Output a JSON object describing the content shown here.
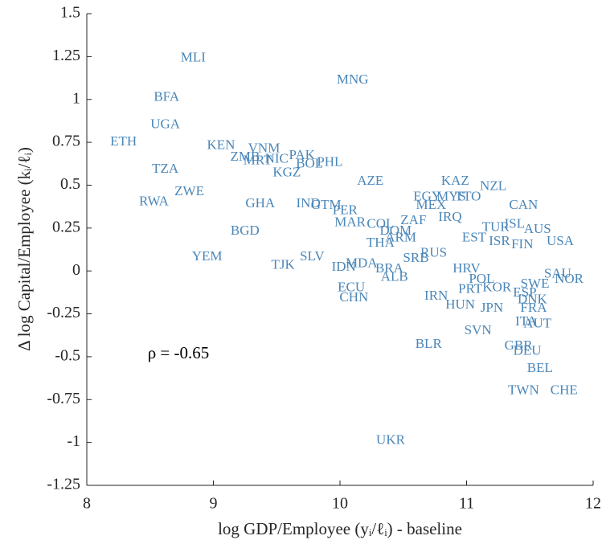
{
  "chart_data": {
    "type": "scatter",
    "xlabel": "log GDP/Employee (yᵢ/ℓᵢ) - baseline",
    "ylabel": "Δ log Capital/Employee (kᵢ/ℓᵢ)",
    "annotation": "ρ = -0.65",
    "color": "#4a86b8",
    "xlim": [
      8,
      12
    ],
    "xticks": [
      8,
      9,
      10,
      11,
      12
    ],
    "ylim": [
      -1.25,
      1.5
    ],
    "yticks": [
      -1.25,
      -1,
      -0.75,
      -0.5,
      -0.25,
      0,
      0.25,
      0.5,
      0.75,
      1,
      1.25,
      1.5
    ],
    "labels": [
      "MLI",
      "MNG",
      "BFA",
      "UGA",
      "ETH",
      "KEN",
      "VNM",
      "ZMB",
      "PAK",
      "MRT",
      "NIC",
      "BOL",
      "PHL",
      "KGZ",
      "TZA",
      "ZWE",
      "RWA",
      "AZE",
      "KAZ",
      "NZL",
      "EGY",
      "MYS",
      "TTO",
      "MEX",
      "GHA",
      "IND",
      "GTM",
      "PER",
      "CAN",
      "MAR",
      "COL",
      "ZAF",
      "IRQ",
      "TUR",
      "ISL",
      "AUS",
      "BGD",
      "DOM",
      "ARM",
      "EST",
      "ISR",
      "FIN",
      "USA",
      "THA",
      "RUS",
      "SRB",
      "YEM",
      "SLV",
      "TJK",
      "IDN",
      "MDA",
      "BRA",
      "ALB",
      "HRV",
      "POL",
      "SAU",
      "NOR",
      "SWE",
      "ECU",
      "CHN",
      "PRT",
      "KOR",
      "ESP",
      "IRN",
      "DNK",
      "HUN",
      "JPN",
      "FRA",
      "ITA",
      "AUT",
      "SVN",
      "BLR",
      "GBR",
      "DEU",
      "BEL",
      "TWN",
      "CHE",
      "UKR"
    ],
    "x": [
      8.84,
      10.1,
      8.63,
      8.62,
      8.29,
      9.06,
      9.4,
      9.25,
      9.7,
      9.35,
      9.5,
      9.76,
      9.92,
      9.58,
      8.62,
      8.81,
      8.53,
      10.24,
      10.91,
      11.21,
      10.69,
      10.88,
      11.01,
      10.72,
      9.37,
      9.75,
      9.89,
      10.04,
      11.45,
      10.08,
      10.32,
      10.58,
      10.87,
      11.23,
      11.38,
      11.56,
      9.25,
      10.44,
      10.48,
      11.06,
      11.26,
      11.44,
      11.74,
      10.32,
      10.74,
      10.6,
      8.95,
      9.78,
      9.55,
      10.03,
      10.17,
      10.39,
      10.43,
      11.0,
      11.12,
      11.72,
      11.81,
      11.54,
      10.09,
      10.11,
      11.03,
      11.24,
      11.46,
      10.76,
      11.52,
      10.95,
      11.2,
      11.53,
      11.47,
      11.56,
      11.09,
      10.7,
      11.41,
      11.48,
      11.58,
      11.45,
      11.77,
      10.4
    ],
    "values": [
      1.24,
      1.11,
      1.01,
      0.85,
      0.75,
      0.73,
      0.71,
      0.66,
      0.67,
      0.64,
      0.65,
      0.62,
      0.63,
      0.57,
      0.59,
      0.46,
      0.4,
      0.52,
      0.52,
      0.49,
      0.43,
      0.43,
      0.43,
      0.38,
      0.39,
      0.39,
      0.38,
      0.35,
      0.38,
      0.28,
      0.27,
      0.29,
      0.31,
      0.25,
      0.27,
      0.24,
      0.23,
      0.23,
      0.19,
      0.19,
      0.17,
      0.15,
      0.17,
      0.16,
      0.1,
      0.07,
      0.08,
      0.08,
      0.03,
      0.02,
      0.04,
      0.01,
      -0.04,
      0.01,
      -0.05,
      -0.02,
      -0.05,
      -0.08,
      -0.1,
      -0.16,
      -0.11,
      -0.1,
      -0.13,
      -0.15,
      -0.17,
      -0.2,
      -0.22,
      -0.22,
      -0.3,
      -0.31,
      -0.35,
      -0.43,
      -0.44,
      -0.47,
      -0.57,
      -0.7,
      -0.7,
      -0.99
    ]
  }
}
